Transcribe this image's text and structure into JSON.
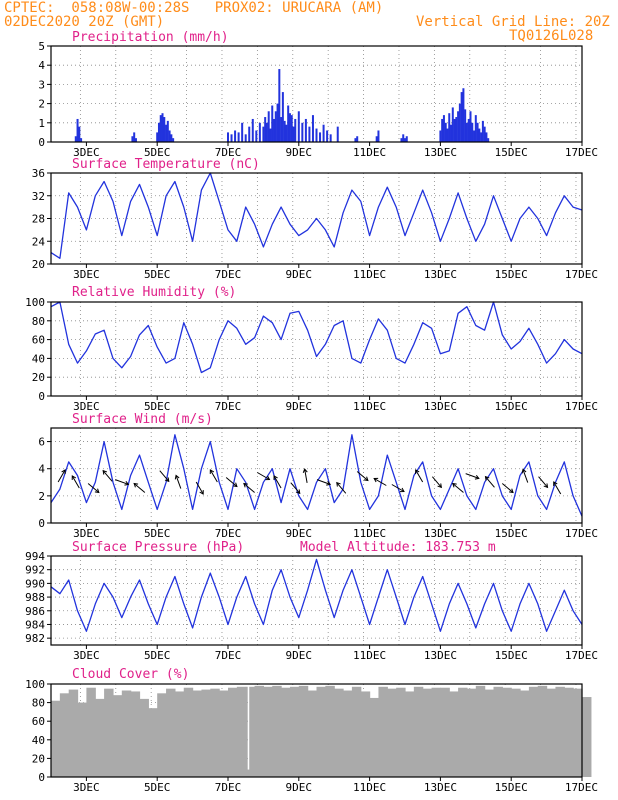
{
  "header": {
    "line1": "CPTEC:  058:08W-00:28S   PROX02: URUCARA (AM)",
    "line2_left": "02DEC2020 20Z (GMT)",
    "line2_right": "Vertical Grid Line: 20Z",
    "line3_right": "TQ0126L028"
  },
  "x_ticks": [
    "3DEC",
    "5DEC",
    "7DEC",
    "9DEC",
    "11DEC",
    "13DEC",
    "15DEC",
    "17DEC"
  ],
  "colors": {
    "header": "#ff8c1a",
    "title": "#e0218a",
    "series": "#2233dd",
    "cloud": "#aaaaaa"
  },
  "chart_data": [
    {
      "type": "bar",
      "title": "Precipitation (mm/h)",
      "ylim": [
        0,
        5
      ],
      "yticks": [
        0,
        1,
        2,
        3,
        4,
        5
      ],
      "x": [
        2.7,
        2.75,
        2.8,
        2.85,
        4.3,
        4.35,
        4.4,
        5.0,
        5.05,
        5.1,
        5.15,
        5.2,
        5.25,
        5.3,
        5.35,
        5.4,
        5.45,
        7.0,
        7.1,
        7.2,
        7.3,
        7.4,
        7.5,
        7.6,
        7.7,
        7.8,
        7.9,
        8.0,
        8.05,
        8.1,
        8.15,
        8.2,
        8.25,
        8.3,
        8.35,
        8.4,
        8.45,
        8.5,
        8.55,
        8.6,
        8.65,
        8.7,
        8.75,
        8.8,
        8.85,
        8.9,
        9.0,
        9.1,
        9.2,
        9.3,
        9.4,
        9.5,
        9.6,
        9.7,
        9.8,
        9.9,
        10.1,
        10.6,
        10.65,
        11.2,
        11.25,
        11.9,
        11.95,
        12.0,
        12.05,
        13.0,
        13.05,
        13.1,
        13.15,
        13.2,
        13.25,
        13.3,
        13.35,
        13.4,
        13.45,
        13.5,
        13.55,
        13.6,
        13.65,
        13.7,
        13.75,
        13.8,
        13.85,
        13.9,
        13.95,
        14.0,
        14.05,
        14.1,
        14.15,
        14.2,
        14.25,
        14.3,
        14.35
      ],
      "values": [
        0.3,
        1.2,
        0.8,
        0.2,
        0.3,
        0.5,
        0.2,
        0.5,
        1.0,
        1.4,
        1.5,
        1.3,
        0.9,
        1.1,
        0.6,
        0.4,
        0.2,
        0.5,
        0.4,
        0.6,
        0.5,
        1.0,
        0.4,
        0.8,
        1.2,
        0.6,
        1.0,
        0.8,
        1.3,
        1.0,
        1.6,
        0.7,
        1.9,
        1.2,
        1.6,
        2.0,
        3.8,
        1.3,
        2.6,
        1.1,
        0.9,
        1.9,
        1.5,
        1.4,
        0.8,
        1.2,
        1.6,
        1.0,
        1.2,
        0.8,
        1.4,
        0.7,
        0.5,
        0.9,
        0.6,
        0.4,
        0.8,
        0.2,
        0.3,
        0.3,
        0.6,
        0.2,
        0.4,
        0.2,
        0.3,
        0.6,
        1.2,
        1.4,
        1.0,
        0.7,
        1.5,
        0.9,
        1.8,
        1.2,
        1.3,
        1.6,
        2.0,
        2.6,
        2.8,
        1.7,
        1.0,
        1.2,
        1.6,
        1.0,
        0.6,
        1.4,
        1.0,
        0.7,
        0.5,
        1.1,
        0.8,
        0.5,
        0.2
      ]
    },
    {
      "type": "line",
      "title": "Surface Temperature (nC)",
      "ylim": [
        20,
        36
      ],
      "yticks": [
        20,
        24,
        28,
        32,
        36
      ],
      "x": [
        2.0,
        2.25,
        2.5,
        2.75,
        3.0,
        3.25,
        3.5,
        3.75,
        4.0,
        4.25,
        4.5,
        4.75,
        5.0,
        5.25,
        5.5,
        5.75,
        6.0,
        6.25,
        6.5,
        6.75,
        7.0,
        7.25,
        7.5,
        7.75,
        8.0,
        8.25,
        8.5,
        8.75,
        9.0,
        9.25,
        9.5,
        9.75,
        10.0,
        10.25,
        10.5,
        10.75,
        11.0,
        11.25,
        11.5,
        11.75,
        12.0,
        12.25,
        12.5,
        12.75,
        13.0,
        13.25,
        13.5,
        13.75,
        14.0,
        14.25,
        14.5,
        14.75,
        15.0,
        15.25,
        15.5,
        15.75,
        16.0,
        16.25,
        16.5,
        16.75,
        17.0
      ],
      "values": [
        22,
        21,
        32.5,
        30,
        26,
        32,
        34.5,
        31,
        25,
        31,
        34,
        30,
        25,
        32,
        34.5,
        30,
        24,
        33,
        36,
        31,
        26,
        24,
        30,
        27,
        23,
        27,
        30,
        27,
        25,
        26,
        28,
        26,
        23,
        29,
        33,
        31,
        25,
        30,
        33.5,
        30,
        25,
        29,
        33,
        29,
        24,
        28,
        32.5,
        28,
        24,
        27,
        32,
        28,
        24,
        28,
        30,
        28,
        25,
        29,
        32,
        30,
        29.5
      ]
    },
    {
      "type": "line",
      "title": "Relative Humidity (%)",
      "ylim": [
        0,
        100
      ],
      "yticks": [
        0,
        20,
        40,
        60,
        80,
        100
      ],
      "x": [
        2.0,
        2.25,
        2.5,
        2.75,
        3.0,
        3.25,
        3.5,
        3.75,
        4.0,
        4.25,
        4.5,
        4.75,
        5.0,
        5.25,
        5.5,
        5.75,
        6.0,
        6.25,
        6.5,
        6.75,
        7.0,
        7.25,
        7.5,
        7.75,
        8.0,
        8.25,
        8.5,
        8.75,
        9.0,
        9.25,
        9.5,
        9.75,
        10.0,
        10.25,
        10.5,
        10.75,
        11.0,
        11.25,
        11.5,
        11.75,
        12.0,
        12.25,
        12.5,
        12.75,
        13.0,
        13.25,
        13.5,
        13.75,
        14.0,
        14.25,
        14.5,
        14.75,
        15.0,
        15.25,
        15.5,
        15.75,
        16.0,
        16.25,
        16.5,
        16.75,
        17.0
      ],
      "values": [
        95,
        100,
        55,
        35,
        48,
        66,
        70,
        40,
        30,
        42,
        65,
        75,
        52,
        35,
        40,
        78,
        55,
        25,
        30,
        60,
        80,
        72,
        55,
        62,
        85,
        78,
        60,
        88,
        90,
        70,
        42,
        55,
        75,
        80,
        40,
        35,
        60,
        82,
        70,
        40,
        35,
        55,
        78,
        72,
        45,
        48,
        88,
        95,
        75,
        70,
        100,
        65,
        50,
        58,
        72,
        55,
        35,
        45,
        60,
        50,
        45
      ]
    },
    {
      "type": "line",
      "title": "Surface Wind (m/s)",
      "ylim": [
        0,
        7
      ],
      "yticks": [
        0,
        2,
        4,
        6
      ],
      "x": [
        2.0,
        2.25,
        2.5,
        2.75,
        3.0,
        3.25,
        3.5,
        3.75,
        4.0,
        4.25,
        4.5,
        4.75,
        5.0,
        5.25,
        5.5,
        5.75,
        6.0,
        6.25,
        6.5,
        6.75,
        7.0,
        7.25,
        7.5,
        7.75,
        8.0,
        8.25,
        8.5,
        8.75,
        9.0,
        9.25,
        9.5,
        9.75,
        10.0,
        10.25,
        10.5,
        10.75,
        11.0,
        11.25,
        11.5,
        11.75,
        12.0,
        12.25,
        12.5,
        12.75,
        13.0,
        13.25,
        13.5,
        13.75,
        14.0,
        14.25,
        14.5,
        14.75,
        15.0,
        15.25,
        15.5,
        15.75,
        16.0,
        16.25,
        16.5,
        16.75,
        17.0
      ],
      "values": [
        1.5,
        2.5,
        4.5,
        3.5,
        1.5,
        3,
        6,
        3,
        1,
        3.5,
        5,
        3,
        1,
        3,
        6.5,
        4,
        1,
        4,
        6,
        3,
        1,
        4,
        3,
        1,
        3,
        4,
        1.5,
        4,
        2,
        1,
        3,
        4,
        1.5,
        2.5,
        6.5,
        3,
        1,
        2,
        5,
        3,
        1,
        3.5,
        4.5,
        2,
        1,
        2.5,
        4,
        2,
        1,
        3,
        4,
        2,
        1,
        3.5,
        4.5,
        2,
        1,
        3,
        4.5,
        2,
        0.5
      ]
    },
    {
      "type": "line",
      "title": "Surface Pressure (hPa)",
      "annotation": "Model Altitude: 183.753 m",
      "ylim": [
        981,
        994
      ],
      "yticks": [
        982,
        984,
        986,
        988,
        990,
        992,
        994
      ],
      "x": [
        2.0,
        2.25,
        2.5,
        2.75,
        3.0,
        3.25,
        3.5,
        3.75,
        4.0,
        4.25,
        4.5,
        4.75,
        5.0,
        5.25,
        5.5,
        5.75,
        6.0,
        6.25,
        6.5,
        6.75,
        7.0,
        7.25,
        7.5,
        7.75,
        8.0,
        8.25,
        8.5,
        8.75,
        9.0,
        9.25,
        9.5,
        9.75,
        10.0,
        10.25,
        10.5,
        10.75,
        11.0,
        11.25,
        11.5,
        11.75,
        12.0,
        12.25,
        12.5,
        12.75,
        13.0,
        13.25,
        13.5,
        13.75,
        14.0,
        14.25,
        14.5,
        14.75,
        15.0,
        15.25,
        15.5,
        15.75,
        16.0,
        16.25,
        16.5,
        16.75,
        17.0
      ],
      "values": [
        989.5,
        988.5,
        990.5,
        986,
        983,
        987,
        990,
        988,
        985,
        988,
        990.5,
        987,
        984,
        988,
        991,
        987,
        983.5,
        988,
        991.5,
        988,
        984,
        988,
        991,
        987,
        984,
        989,
        992,
        988,
        985,
        989,
        993.5,
        989,
        985,
        989,
        992,
        988,
        984,
        988,
        992,
        988,
        984,
        988,
        991,
        987,
        983,
        987,
        990,
        987,
        983.5,
        987,
        990,
        986,
        983,
        987,
        990,
        987,
        983,
        986,
        989,
        986,
        984
      ]
    },
    {
      "type": "area",
      "title": "Cloud Cover (%)",
      "ylim": [
        0,
        100
      ],
      "yticks": [
        0,
        20,
        40,
        60,
        80,
        100
      ],
      "x": [
        2.0,
        2.25,
        2.5,
        2.75,
        3.0,
        3.25,
        3.5,
        3.75,
        4.0,
        4.25,
        4.5,
        4.75,
        5.0,
        5.25,
        5.5,
        5.75,
        6.0,
        6.25,
        6.5,
        6.75,
        7.0,
        7.25,
        7.5,
        7.55,
        7.6,
        7.75,
        8.0,
        8.25,
        8.5,
        8.75,
        9.0,
        9.25,
        9.5,
        9.75,
        10.0,
        10.25,
        10.5,
        10.75,
        11.0,
        11.25,
        11.5,
        11.75,
        12.0,
        12.25,
        12.5,
        12.75,
        13.0,
        13.25,
        13.5,
        13.75,
        14.0,
        14.25,
        14.5,
        14.75,
        15.0,
        15.25,
        15.5,
        15.75,
        16.0,
        16.25,
        16.5,
        16.75,
        17.0
      ],
      "values": [
        82,
        90,
        94,
        80,
        96,
        84,
        95,
        88,
        93,
        92,
        84,
        74,
        90,
        95,
        92,
        96,
        93,
        94,
        95,
        93,
        96,
        97,
        97,
        8,
        97,
        98,
        97,
        98,
        96,
        97,
        98,
        93,
        97,
        98,
        95,
        93,
        97,
        92,
        85,
        97,
        95,
        96,
        92,
        97,
        95,
        96,
        96,
        92,
        96,
        95,
        98,
        94,
        97,
        96,
        95,
        93,
        97,
        98,
        95,
        97,
        96,
        95,
        86
      ]
    }
  ]
}
